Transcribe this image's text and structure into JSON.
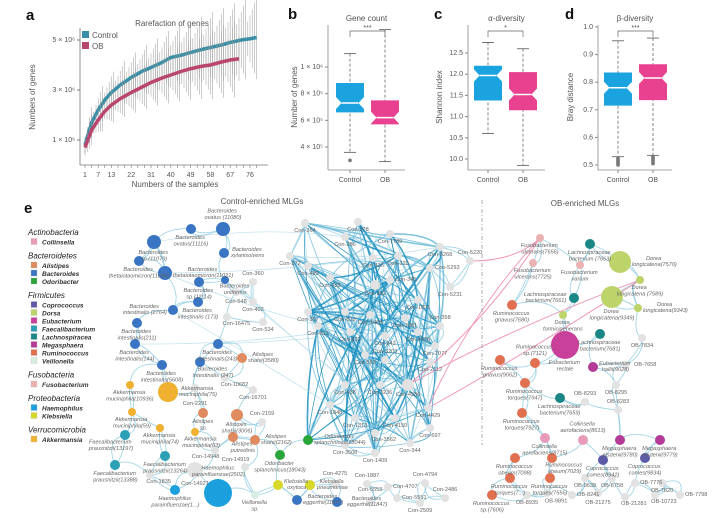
{
  "panel_letters": [
    "a",
    "b",
    "c",
    "d",
    "e"
  ],
  "chart_data": [
    {
      "type": "line",
      "title": "Rarefaction of genes",
      "xlabel": "Numbers of the samples",
      "ylabel": "Numbers of genes",
      "xticks": [
        1,
        7,
        13,
        22,
        31,
        40,
        49,
        58,
        67,
        76
      ],
      "yticks": [
        {
          "v": 1000000,
          "label": "1 × 10⁶"
        },
        {
          "v": 3000000,
          "label": "3 × 10⁶"
        },
        {
          "v": 5000000,
          "label": "5 × 10⁶"
        }
      ],
      "legend": "top-left",
      "series": [
        {
          "name": "Control",
          "color": "#3a8fa6",
          "x": [
            1,
            4,
            7,
            10,
            13,
            17,
            22,
            27,
            31,
            36,
            40,
            45,
            49,
            54,
            58,
            63,
            67,
            72,
            76,
            79
          ],
          "y": [
            800000,
            1700000,
            2200000,
            2600000,
            2900000,
            3200000,
            3500000,
            3750000,
            3900000,
            4100000,
            4300000,
            4400000,
            4500000,
            4620000,
            4700000,
            4800000,
            4900000,
            5000000,
            5050000,
            5100000
          ]
        },
        {
          "name": "OB",
          "color": "#b9466f",
          "x": [
            1,
            4,
            7,
            10,
            13,
            17,
            22,
            27,
            31,
            36,
            40,
            45,
            49,
            54,
            58,
            63,
            67,
            71
          ],
          "y": [
            700000,
            1400000,
            1800000,
            2150000,
            2400000,
            2650000,
            2900000,
            3120000,
            3300000,
            3480000,
            3600000,
            3750000,
            3850000,
            3950000,
            4000000,
            4120000,
            4200000,
            4250000
          ]
        }
      ]
    },
    {
      "type": "box",
      "title": "Gene count",
      "ylabel": "Number of genes",
      "categories": [
        "Control",
        "OB"
      ],
      "yticks": [
        {
          "v": 400000,
          "label": "4 × 10⁵"
        },
        {
          "v": 600000,
          "label": "6 × 10⁵"
        },
        {
          "v": 800000,
          "label": "8 × 10⁵"
        },
        {
          "v": 1000000,
          "label": "1 × 10⁶"
        }
      ],
      "significance": "***",
      "boxes": [
        {
          "min": 360000,
          "q1": 660000,
          "median": 730000,
          "q3": 880000,
          "max": 1100000,
          "outliers": [
            300000
          ],
          "color": "#1aa3de"
        },
        {
          "min": 290000,
          "q1": 570000,
          "median": 620000,
          "q3": 750000,
          "max": 1280000,
          "outliers": [],
          "color": "#e8418f"
        }
      ]
    },
    {
      "type": "box",
      "title": "α-diversity",
      "ylabel": "Shannon index",
      "categories": [
        "Control",
        "OB"
      ],
      "yticks": [
        {
          "v": 10.0,
          "label": "10.0"
        },
        {
          "v": 10.5,
          "label": "10.5"
        },
        {
          "v": 11.0,
          "label": "11.0"
        },
        {
          "v": 11.5,
          "label": "11.5"
        },
        {
          "v": 12.0,
          "label": "12.0"
        },
        {
          "v": 12.5,
          "label": "12.5"
        }
      ],
      "significance": "*",
      "boxes": [
        {
          "min": 10.6,
          "q1": 11.38,
          "median": 11.97,
          "q3": 12.2,
          "max": 12.75,
          "outliers": [],
          "color": "#1aa3de"
        },
        {
          "min": 9.85,
          "q1": 11.15,
          "median": 11.52,
          "q3": 12.05,
          "max": 12.6,
          "outliers": [],
          "color": "#e8418f"
        }
      ]
    },
    {
      "type": "box",
      "title": "β-diversity",
      "ylabel": "Bray distance",
      "categories": [
        "Control",
        "OB"
      ],
      "yticks": [
        {
          "v": 0.5,
          "label": "0.5"
        },
        {
          "v": 0.6,
          "label": "0.6"
        },
        {
          "v": 0.7,
          "label": "0.7"
        },
        {
          "v": 0.8,
          "label": "0.8"
        },
        {
          "v": 0.9,
          "label": "0.9"
        },
        {
          "v": 1.0,
          "label": "1.0"
        }
      ],
      "significance": "***",
      "boxes": [
        {
          "min": 0.53,
          "q1": 0.715,
          "median": 0.78,
          "q3": 0.835,
          "max": 0.95,
          "outliers": [
            0.525,
            0.52,
            0.515,
            0.51,
            0.505,
            0.5
          ],
          "color": "#1aa3de"
        },
        {
          "min": 0.535,
          "q1": 0.735,
          "median": 0.815,
          "q3": 0.865,
          "max": 0.96,
          "outliers": [
            0.53,
            0.525,
            0.52,
            0.515,
            0.51,
            0.505
          ],
          "color": "#e8418f"
        }
      ]
    }
  ],
  "network": {
    "control_title": "Control-enriched MLGs",
    "ob_title": "OB-enriched MLGs",
    "legend": [
      {
        "phylum": "Actinobacteria",
        "genera": [
          {
            "name": "Collinsella",
            "color": "#e89ab8"
          }
        ]
      },
      {
        "phylum": "Bacteroidetes",
        "genera": [
          {
            "name": "Alistipes",
            "color": "#e08a5f"
          },
          {
            "name": "Bacteroides",
            "color": "#3a75c4"
          },
          {
            "name": "Odoribacter",
            "color": "#2aa53a"
          }
        ]
      },
      {
        "phylum": "Firmicutes",
        "genera": [
          {
            "name": "Coprococcus",
            "color": "#5d5aa8"
          },
          {
            "name": "Dorsa",
            "color": "#bcd46a"
          },
          {
            "name": "Eubacterium",
            "color": "#c8409a"
          },
          {
            "name": "Faecalibacterium",
            "color": "#2a9fb5"
          },
          {
            "name": "Lachnospiracea",
            "color": "#1b8686"
          },
          {
            "name": "Megasphaera",
            "color": "#b33a96"
          },
          {
            "name": "Ruminococcus",
            "color": "#e07050"
          },
          {
            "name": "Veillonella",
            "color": "#d8eee0"
          }
        ]
      },
      {
        "phylum": "Fusobacteria",
        "genera": [
          {
            "name": "Fusobacterium",
            "color": "#eab2b2"
          }
        ]
      },
      {
        "phylum": "Proteobacteria",
        "genera": [
          {
            "name": "Haemophilus",
            "color": "#1ba0dd"
          },
          {
            "name": "Klebsiella",
            "color": "#d8d82a"
          }
        ]
      },
      {
        "phylum": "Verrucomicrobia",
        "genera": [
          {
            "name": "Akkermansia",
            "color": "#f0b030"
          }
        ]
      }
    ],
    "nodes": [
      {
        "label": "Bacteroides ovatus(11116)",
        "taxon": "Bacteroides"
      },
      {
        "label": "Bacteroides ovatus (11080)",
        "taxon": "Bacteroides"
      },
      {
        "label": "Bacteroides sp.(11079)",
        "taxon": "Bacteroides"
      },
      {
        "label": "Bacteroides thetaiotaomicron(11068)",
        "taxon": "Bacteroides"
      },
      {
        "label": "Bacteroides thetaiotaomicron(11021)",
        "taxon": "Bacteroides"
      },
      {
        "label": "Bacteroides xylanisolvens",
        "taxon": "Bacteroides"
      },
      {
        "label": "Bacteroides sp.(11114)",
        "taxon": "Bacteroides"
      },
      {
        "label": "Bacteroides uniformis",
        "taxon": "Bacteroides"
      },
      {
        "label": "Bacteroides intestinalis (173)",
        "taxon": "Bacteroides"
      },
      {
        "label": "Bacteroides intestinalis (2764)",
        "taxon": "Bacteroides"
      },
      {
        "label": "Bacteroides intestinalis(211)",
        "taxon": "Bacteroides"
      },
      {
        "label": "Bacteroides intestinalis(144)",
        "taxon": "Bacteroides"
      },
      {
        "label": "Bacteroides intestinalis(243)",
        "taxon": "Bacteroides"
      },
      {
        "label": "Con-548"
      },
      {
        "label": "Con-402"
      },
      {
        "label": "Con-16475"
      },
      {
        "label": "Con-534"
      },
      {
        "label": "Con-360"
      },
      {
        "label": "Con-372"
      },
      {
        "label": "Con-364"
      },
      {
        "label": "Con-378"
      },
      {
        "label": "Con-1789"
      },
      {
        "label": "Con-386"
      },
      {
        "label": "Con-336"
      },
      {
        "label": "Con-320"
      },
      {
        "label": "Con-489"
      },
      {
        "label": "Con-285"
      },
      {
        "label": "Con-352"
      },
      {
        "label": "Con-345"
      },
      {
        "label": "Con-1821"
      },
      {
        "label": "Con-367"
      },
      {
        "label": "Con-819"
      },
      {
        "label": "Con-1468"
      },
      {
        "label": "Con-2081"
      },
      {
        "label": "Con-813"
      },
      {
        "label": "Con-812"
      },
      {
        "label": "Con-943"
      },
      {
        "label": "Con-6526"
      },
      {
        "label": "Con-358"
      },
      {
        "label": "Con-2077"
      },
      {
        "label": "Con-5268"
      },
      {
        "label": "Con-5293"
      },
      {
        "label": "Con-5220"
      },
      {
        "label": "Con-5231"
      },
      {
        "label": "Con-553"
      },
      {
        "label": "Con-3203"
      },
      {
        "label": "Con-2112"
      },
      {
        "label": "Con-4586"
      },
      {
        "label": "Con-638"
      },
      {
        "label": "Con-3236"
      },
      {
        "label": "Con-1848"
      },
      {
        "label": "Con-1313"
      },
      {
        "label": "Con-4150"
      },
      {
        "label": "Con-4429"
      },
      {
        "label": "Con-3562"
      },
      {
        "label": "Con-697"
      },
      {
        "label": "Con-3508"
      },
      {
        "label": "Con-344"
      },
      {
        "label": "Con-1409"
      },
      {
        "label": "Bacteroides intestinalis(5608)",
        "taxon": "Bacteroides"
      },
      {
        "label": "Bacteroides intestinalis (247)",
        "taxon": "Bacteroides"
      },
      {
        "label": "Alistipes shahii(3580)",
        "taxon": "Alistipes"
      },
      {
        "label": "Akkermansia muciniphila(10936)",
        "taxon": "Akkermansia"
      },
      {
        "label": "Con-2291"
      },
      {
        "label": "Akkermansia muciniphila(75)",
        "taxon": "Akkermansia"
      },
      {
        "label": "Con-10682"
      },
      {
        "label": "Con-16701"
      },
      {
        "label": "Akkermansia muciniphila(59)",
        "taxon": "Akkermansia"
      },
      {
        "label": "Alistipes sp.",
        "taxon": "Alistipes"
      },
      {
        "label": "Alistipes shahii(3006)",
        "taxon": "Alistipes"
      },
      {
        "label": "Con-2159"
      },
      {
        "label": "Akkermansia muciniphila(74)",
        "taxon": "Akkermansia"
      },
      {
        "label": "Akkermansia muciniphila(63)",
        "taxon": "Akkermansia"
      },
      {
        "label": "Faecalibacterium prausnitzii(13197)",
        "taxon": "Faecalibacterium"
      },
      {
        "label": "Alistipes putredinis",
        "taxon": "Alistipes"
      },
      {
        "label": "Alistipes shahii(2162)",
        "taxon": "Alistipes"
      },
      {
        "label": "Odoribacter splanchnicus(18044)",
        "taxon": "Odoribacter"
      },
      {
        "label": "Faecalibacterium prausnitzii(13264)",
        "taxon": "Faecalibacterium"
      },
      {
        "label": "Con-14948"
      },
      {
        "label": "Faecalibacterium prausnitzii(13388)",
        "taxon": "Faecalibacterium"
      },
      {
        "label": "Con-14921"
      },
      {
        "label": "Con-14919"
      },
      {
        "label": "Con-1835"
      },
      {
        "label": "Odoribacter splanchnicus(18043)",
        "taxon": "Odoribacter"
      },
      {
        "label": "Haemophilus parainfluenzae(1...)",
        "taxon": "Haemophilus"
      },
      {
        "label": "Haemophilus parainfluenzae(2502)",
        "taxon": "Haemophilus"
      },
      {
        "label": "Veillonella sp.",
        "taxon": "Veillonella"
      },
      {
        "label": "Klebsiella oxytoca",
        "taxon": "Klebsiella"
      },
      {
        "label": "Klebsiella pneumoniae",
        "taxon": "Klebsiella"
      },
      {
        "label": "Bacteroides eggerthii(11877)",
        "taxon": "Bacteroides"
      },
      {
        "label": "Con-4275"
      },
      {
        "label": "Con-1887"
      },
      {
        "label": "Con-4707"
      },
      {
        "label": "Con-4794"
      },
      {
        "label": "Con-5551"
      },
      {
        "label": "Con-5553"
      },
      {
        "label": "Con-2509"
      },
      {
        "label": "Con-2486"
      },
      {
        "label": "Bacteroides eggerthii(11847)",
        "taxon": "Bacteroides"
      },
      {
        "label": "Fusobacterium ulcerans(7656)",
        "taxon": "Fusobacterium"
      },
      {
        "label": "Lachnospiraceae bacterium (7663)",
        "taxon": "Lachnospiracea"
      },
      {
        "label": "Fusobacterium ulcerans(7725)",
        "taxon": "Fusobacterium"
      },
      {
        "label": "Fusobacterium varium",
        "taxon": "Fusobacterium"
      },
      {
        "label": "Dorea longicatena(7570)",
        "taxon": "Dorsa"
      },
      {
        "label": "Dorea longicatena (7589)",
        "taxon": "Dorsa"
      },
      {
        "label": "Dorea longicatena(9349)",
        "taxon": "Dorsa"
      },
      {
        "label": "Dorea longicatena(9343)",
        "taxon": "Dorsa"
      },
      {
        "label": "Lachnospiraceae bacterium(7661)",
        "taxon": "Lachnospiracea"
      },
      {
        "label": "Ruminococcus gnavus(7680)",
        "taxon": "Ruminococcus"
      },
      {
        "label": "Dorea formicigenerans",
        "taxon": "Dorsa"
      },
      {
        "label": "Lachnospiraceae bacterium(7681)",
        "taxon": "Lachnospiracea"
      },
      {
        "label": "OB-7834"
      },
      {
        "label": "Eubacterium rectale",
        "taxon": "Eubacterium"
      },
      {
        "label": "Ruminococcus gnavus(9062)",
        "taxon": "Ruminococcus"
      },
      {
        "label": "Ruminococcus sp.(7121)",
        "taxon": "Ruminococcus"
      },
      {
        "label": "Eubacterium hallii(9028)",
        "taxon": "Megasphaera"
      },
      {
        "label": "OB-7658"
      },
      {
        "label": "Ruminococcus torques(7947)",
        "taxon": "Ruminococcus"
      },
      {
        "label": "OB-8295"
      },
      {
        "label": "Lachnospiraceae bacterium(7659)",
        "taxon": "Lachnospiracea"
      },
      {
        "label": "OB-8293"
      },
      {
        "label": "OB-8283"
      },
      {
        "label": "Ruminococcus torques(7927)",
        "taxon": "Ruminococcus"
      },
      {
        "label": "Collinsella aerofaciens(8715)",
        "taxon": "Collinsella"
      },
      {
        "label": "Collinsella aerofaciens(8613)",
        "taxon": "Collinsella"
      },
      {
        "label": "Megasphaera elsdenii(9780)",
        "taxon": "Megasphaera"
      },
      {
        "label": "Megasphaera elsdenii(9779)",
        "taxon": "Megasphaera"
      },
      {
        "label": "Ruminococcus obeum(7098)",
        "taxon": "Ruminococcus"
      },
      {
        "label": "Ruminococcus obeum(7029)",
        "taxon": "Ruminococcus"
      },
      {
        "label": "Coprococcus comes(8942)",
        "taxon": "Coprococcus"
      },
      {
        "label": "Coprococcus comes(9834)",
        "taxon": "Coprococcus"
      },
      {
        "label": "Ruminococcus torques(7...)",
        "taxon": "Ruminococcus"
      },
      {
        "label": "Ruminococcus torques(7556)",
        "taxon": "Ruminococcus"
      },
      {
        "label": "OB-9638"
      },
      {
        "label": "OB-8758"
      },
      {
        "label": "OB-7776"
      },
      {
        "label": "OB-7820"
      },
      {
        "label": "Ruminococcus sp.(7606)",
        "taxon": "Ruminococcus"
      },
      {
        "label": "OB-8935"
      },
      {
        "label": "OB-9891"
      },
      {
        "label": "OB-8241"
      },
      {
        "label": "OB-21275"
      },
      {
        "label": "OB-21281"
      },
      {
        "label": "OB-10723"
      },
      {
        "label": "OB-7798"
      }
    ]
  }
}
